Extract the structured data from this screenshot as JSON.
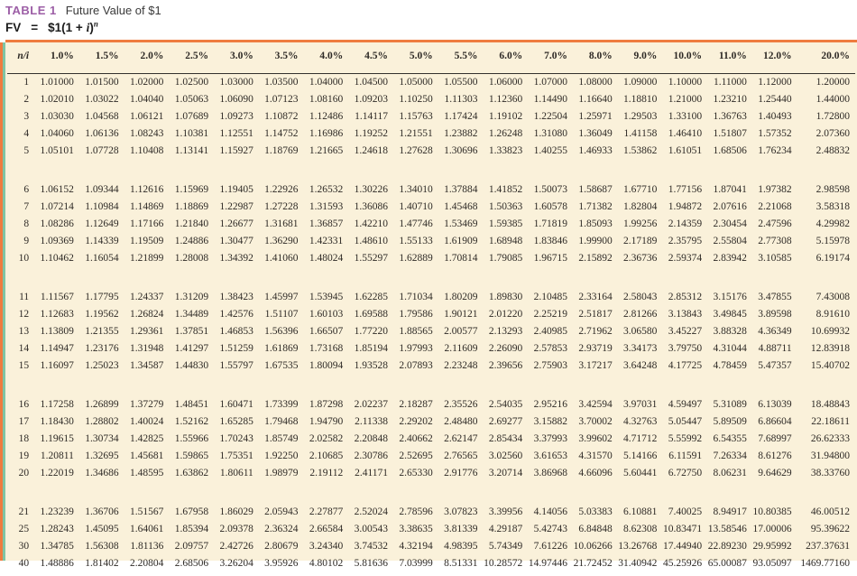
{
  "title": {
    "label": "TABLE 1",
    "caption": "Future Value of $1"
  },
  "formula": {
    "lhs": "FV",
    "eq": "=",
    "base_prefix": "$1(1 + ",
    "i_symbol": "i",
    "base_suffix": ")",
    "exponent": "n"
  },
  "colors": {
    "accent_orange": "#ef7c3f",
    "accent_teal": "#7fc4a4",
    "title_purple": "#9c5ea6",
    "table_background": "#faf1da",
    "text": "#2e2a26"
  },
  "table": {
    "headers": [
      "n/i",
      "1.0%",
      "1.5%",
      "2.0%",
      "2.5%",
      "3.0%",
      "3.5%",
      "4.0%",
      "4.5%",
      "5.0%",
      "5.5%",
      "6.0%",
      "7.0%",
      "8.0%",
      "9.0%",
      "10.0%",
      "11.0%",
      "12.0%",
      "20.0%"
    ],
    "groups": [
      [
        [
          "1",
          "1.01000",
          "1.01500",
          "1.02000",
          "1.02500",
          "1.03000",
          "1.03500",
          "1.04000",
          "1.04500",
          "1.05000",
          "1.05500",
          "1.06000",
          "1.07000",
          "1.08000",
          "1.09000",
          "1.10000",
          "1.11000",
          "1.12000",
          "1.20000"
        ],
        [
          "2",
          "1.02010",
          "1.03022",
          "1.04040",
          "1.05063",
          "1.06090",
          "1.07123",
          "1.08160",
          "1.09203",
          "1.10250",
          "1.11303",
          "1.12360",
          "1.14490",
          "1.16640",
          "1.18810",
          "1.21000",
          "1.23210",
          "1.25440",
          "1.44000"
        ],
        [
          "3",
          "1.03030",
          "1.04568",
          "1.06121",
          "1.07689",
          "1.09273",
          "1.10872",
          "1.12486",
          "1.14117",
          "1.15763",
          "1.17424",
          "1.19102",
          "1.22504",
          "1.25971",
          "1.29503",
          "1.33100",
          "1.36763",
          "1.40493",
          "1.72800"
        ],
        [
          "4",
          "1.04060",
          "1.06136",
          "1.08243",
          "1.10381",
          "1.12551",
          "1.14752",
          "1.16986",
          "1.19252",
          "1.21551",
          "1.23882",
          "1.26248",
          "1.31080",
          "1.36049",
          "1.41158",
          "1.46410",
          "1.51807",
          "1.57352",
          "2.07360"
        ],
        [
          "5",
          "1.05101",
          "1.07728",
          "1.10408",
          "1.13141",
          "1.15927",
          "1.18769",
          "1.21665",
          "1.24618",
          "1.27628",
          "1.30696",
          "1.33823",
          "1.40255",
          "1.46933",
          "1.53862",
          "1.61051",
          "1.68506",
          "1.76234",
          "2.48832"
        ]
      ],
      [
        [
          "6",
          "1.06152",
          "1.09344",
          "1.12616",
          "1.15969",
          "1.19405",
          "1.22926",
          "1.26532",
          "1.30226",
          "1.34010",
          "1.37884",
          "1.41852",
          "1.50073",
          "1.58687",
          "1.67710",
          "1.77156",
          "1.87041",
          "1.97382",
          "2.98598"
        ],
        [
          "7",
          "1.07214",
          "1.10984",
          "1.14869",
          "1.18869",
          "1.22987",
          "1.27228",
          "1.31593",
          "1.36086",
          "1.40710",
          "1.45468",
          "1.50363",
          "1.60578",
          "1.71382",
          "1.82804",
          "1.94872",
          "2.07616",
          "2.21068",
          "3.58318"
        ],
        [
          "8",
          "1.08286",
          "1.12649",
          "1.17166",
          "1.21840",
          "1.26677",
          "1.31681",
          "1.36857",
          "1.42210",
          "1.47746",
          "1.53469",
          "1.59385",
          "1.71819",
          "1.85093",
          "1.99256",
          "2.14359",
          "2.30454",
          "2.47596",
          "4.29982"
        ],
        [
          "9",
          "1.09369",
          "1.14339",
          "1.19509",
          "1.24886",
          "1.30477",
          "1.36290",
          "1.42331",
          "1.48610",
          "1.55133",
          "1.61909",
          "1.68948",
          "1.83846",
          "1.99900",
          "2.17189",
          "2.35795",
          "2.55804",
          "2.77308",
          "5.15978"
        ],
        [
          "10",
          "1.10462",
          "1.16054",
          "1.21899",
          "1.28008",
          "1.34392",
          "1.41060",
          "1.48024",
          "1.55297",
          "1.62889",
          "1.70814",
          "1.79085",
          "1.96715",
          "2.15892",
          "2.36736",
          "2.59374",
          "2.83942",
          "3.10585",
          "6.19174"
        ]
      ],
      [
        [
          "11",
          "1.11567",
          "1.17795",
          "1.24337",
          "1.31209",
          "1.38423",
          "1.45997",
          "1.53945",
          "1.62285",
          "1.71034",
          "1.80209",
          "1.89830",
          "2.10485",
          "2.33164",
          "2.58043",
          "2.85312",
          "3.15176",
          "3.47855",
          "7.43008"
        ],
        [
          "12",
          "1.12683",
          "1.19562",
          "1.26824",
          "1.34489",
          "1.42576",
          "1.51107",
          "1.60103",
          "1.69588",
          "1.79586",
          "1.90121",
          "2.01220",
          "2.25219",
          "2.51817",
          "2.81266",
          "3.13843",
          "3.49845",
          "3.89598",
          "8.91610"
        ],
        [
          "13",
          "1.13809",
          "1.21355",
          "1.29361",
          "1.37851",
          "1.46853",
          "1.56396",
          "1.66507",
          "1.77220",
          "1.88565",
          "2.00577",
          "2.13293",
          "2.40985",
          "2.71962",
          "3.06580",
          "3.45227",
          "3.88328",
          "4.36349",
          "10.69932"
        ],
        [
          "14",
          "1.14947",
          "1.23176",
          "1.31948",
          "1.41297",
          "1.51259",
          "1.61869",
          "1.73168",
          "1.85194",
          "1.97993",
          "2.11609",
          "2.26090",
          "2.57853",
          "2.93719",
          "3.34173",
          "3.79750",
          "4.31044",
          "4.88711",
          "12.83918"
        ],
        [
          "15",
          "1.16097",
          "1.25023",
          "1.34587",
          "1.44830",
          "1.55797",
          "1.67535",
          "1.80094",
          "1.93528",
          "2.07893",
          "2.23248",
          "2.39656",
          "2.75903",
          "3.17217",
          "3.64248",
          "4.17725",
          "4.78459",
          "5.47357",
          "15.40702"
        ]
      ],
      [
        [
          "16",
          "1.17258",
          "1.26899",
          "1.37279",
          "1.48451",
          "1.60471",
          "1.73399",
          "1.87298",
          "2.02237",
          "2.18287",
          "2.35526",
          "2.54035",
          "2.95216",
          "3.42594",
          "3.97031",
          "4.59497",
          "5.31089",
          "6.13039",
          "18.48843"
        ],
        [
          "17",
          "1.18430",
          "1.28802",
          "1.40024",
          "1.52162",
          "1.65285",
          "1.79468",
          "1.94790",
          "2.11338",
          "2.29202",
          "2.48480",
          "2.69277",
          "3.15882",
          "3.70002",
          "4.32763",
          "5.05447",
          "5.89509",
          "6.86604",
          "22.18611"
        ],
        [
          "18",
          "1.19615",
          "1.30734",
          "1.42825",
          "1.55966",
          "1.70243",
          "1.85749",
          "2.02582",
          "2.20848",
          "2.40662",
          "2.62147",
          "2.85434",
          "3.37993",
          "3.99602",
          "4.71712",
          "5.55992",
          "6.54355",
          "7.68997",
          "26.62333"
        ],
        [
          "19",
          "1.20811",
          "1.32695",
          "1.45681",
          "1.59865",
          "1.75351",
          "1.92250",
          "2.10685",
          "2.30786",
          "2.52695",
          "2.76565",
          "3.02560",
          "3.61653",
          "4.31570",
          "5.14166",
          "6.11591",
          "7.26334",
          "8.61276",
          "31.94800"
        ],
        [
          "20",
          "1.22019",
          "1.34686",
          "1.48595",
          "1.63862",
          "1.80611",
          "1.98979",
          "2.19112",
          "2.41171",
          "2.65330",
          "2.91776",
          "3.20714",
          "3.86968",
          "4.66096",
          "5.60441",
          "6.72750",
          "8.06231",
          "9.64629",
          "38.33760"
        ]
      ],
      [
        [
          "21",
          "1.23239",
          "1.36706",
          "1.51567",
          "1.67958",
          "1.86029",
          "2.05943",
          "2.27877",
          "2.52024",
          "2.78596",
          "3.07823",
          "3.39956",
          "4.14056",
          "5.03383",
          "6.10881",
          "7.40025",
          "8.94917",
          "10.80385",
          "46.00512"
        ],
        [
          "25",
          "1.28243",
          "1.45095",
          "1.64061",
          "1.85394",
          "2.09378",
          "2.36324",
          "2.66584",
          "3.00543",
          "3.38635",
          "3.81339",
          "4.29187",
          "5.42743",
          "6.84848",
          "8.62308",
          "10.83471",
          "13.58546",
          "17.00006",
          "95.39622"
        ],
        [
          "30",
          "1.34785",
          "1.56308",
          "1.81136",
          "2.09757",
          "2.42726",
          "2.80679",
          "3.24340",
          "3.74532",
          "4.32194",
          "4.98395",
          "5.74349",
          "7.61226",
          "10.06266",
          "13.26768",
          "17.44940",
          "22.89230",
          "29.95992",
          "237.37631"
        ],
        [
          "40",
          "1.48886",
          "1.81402",
          "2.20804",
          "2.68506",
          "3.26204",
          "3.95926",
          "4.80102",
          "5.81636",
          "7.03999",
          "8.51331",
          "10.28572",
          "14.97446",
          "21.72452",
          "31.40942",
          "45.25926",
          "65.00087",
          "93.05097",
          "1469.77160"
        ]
      ]
    ]
  }
}
